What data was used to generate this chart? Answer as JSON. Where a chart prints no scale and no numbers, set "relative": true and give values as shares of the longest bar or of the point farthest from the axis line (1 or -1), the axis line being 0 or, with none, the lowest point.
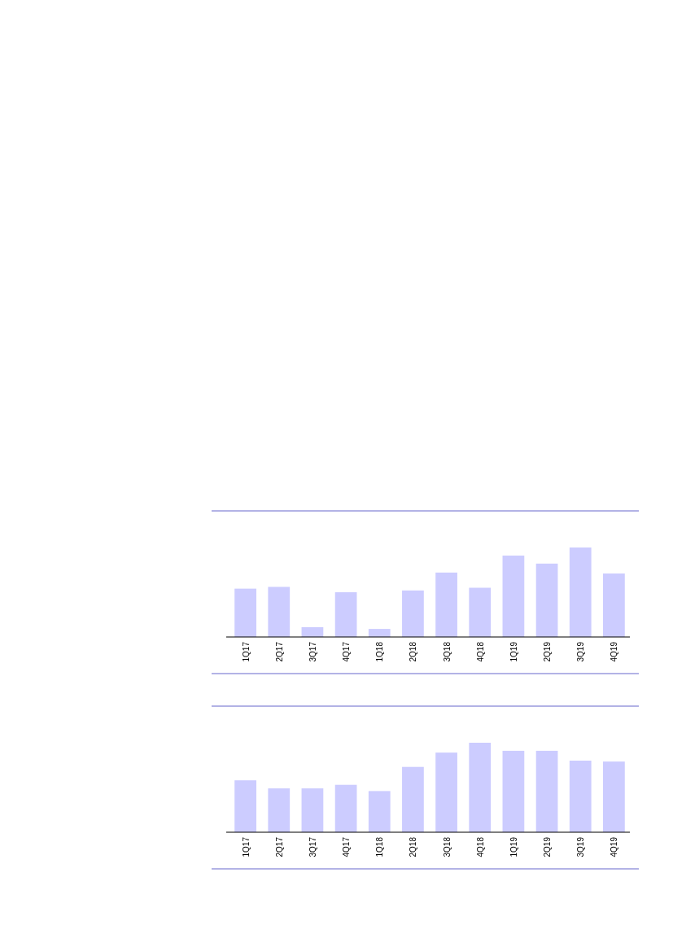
{
  "chart_data": [
    {
      "type": "bar",
      "relative": true,
      "color": "#ccccff",
      "categories": [
        "1Q17",
        "2Q17",
        "3Q17",
        "4Q17",
        "1Q18",
        "2Q18",
        "3Q18",
        "4Q18",
        "1Q19",
        "2Q19",
        "3Q19",
        "4Q19"
      ],
      "values": [
        0.54,
        0.56,
        0.11,
        0.5,
        0.09,
        0.52,
        0.72,
        0.55,
        0.91,
        0.82,
        1,
        0.71
      ]
    },
    {
      "type": "bar",
      "relative": true,
      "color": "#ccccff",
      "categories": [
        "1Q17",
        "2Q17",
        "3Q17",
        "4Q17",
        "1Q18",
        "2Q18",
        "3Q18",
        "4Q18",
        "1Q19",
        "2Q19",
        "3Q19",
        "4Q19"
      ],
      "values": [
        0.58,
        0.49,
        0.49,
        0.53,
        0.46,
        0.73,
        0.89,
        1,
        0.91,
        0.91,
        0.8,
        0.79
      ]
    }
  ]
}
